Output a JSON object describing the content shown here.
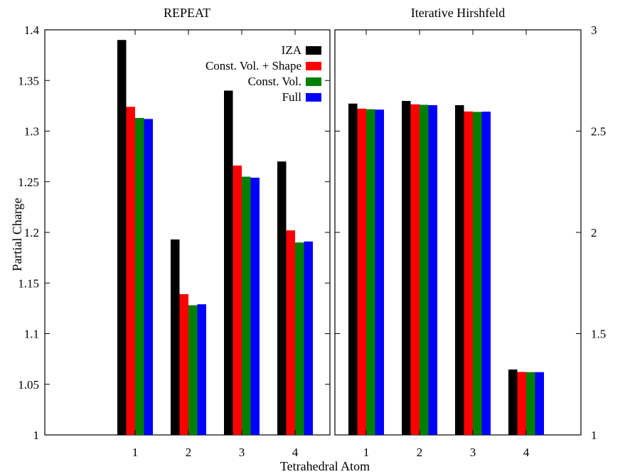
{
  "chart_data": {
    "type": "bar",
    "xlabel": "Tetrahedral Atom",
    "ylabel": "Partial Charge",
    "categories": [
      "1",
      "2",
      "3",
      "4"
    ],
    "legend_position": "top-right",
    "grid": false,
    "series_colors": {
      "IZA": "#000000",
      "Const. Vol. + Shape": "#ff0000",
      "Const. Vol.": "#008000",
      "Full": "#0000ff"
    },
    "panels": [
      {
        "title": "REPEAT",
        "ylim": [
          1,
          1.4
        ],
        "yticks": [
          "1",
          "1.05",
          "1.1",
          "1.15",
          "1.2",
          "1.25",
          "1.3",
          "1.35",
          "1.4"
        ],
        "series": [
          {
            "name": "IZA",
            "values": [
              1.39,
              1.193,
              1.34,
              1.27
            ]
          },
          {
            "name": "Const. Vol. + Shape",
            "values": [
              1.324,
              1.139,
              1.266,
              1.202
            ]
          },
          {
            "name": "Const. Vol.",
            "values": [
              1.313,
              1.128,
              1.255,
              1.19
            ]
          },
          {
            "name": "Full",
            "values": [
              1.312,
              1.129,
              1.254,
              1.191
            ]
          }
        ]
      },
      {
        "title": "Iterative Hirshfeld",
        "ylim": [
          1,
          3
        ],
        "yticks": [
          "1",
          "1.5",
          "2",
          "2.5",
          "3"
        ],
        "series": [
          {
            "name": "IZA",
            "values": [
              2.636,
              2.649,
              2.628,
              1.323
            ]
          },
          {
            "name": "Const. Vol. + Shape",
            "values": [
              2.611,
              2.632,
              2.597,
              1.311
            ]
          },
          {
            "name": "Const. Vol.",
            "values": [
              2.608,
              2.63,
              2.595,
              1.31
            ]
          },
          {
            "name": "Full",
            "values": [
              2.606,
              2.628,
              2.596,
              1.31
            ]
          }
        ]
      }
    ]
  }
}
